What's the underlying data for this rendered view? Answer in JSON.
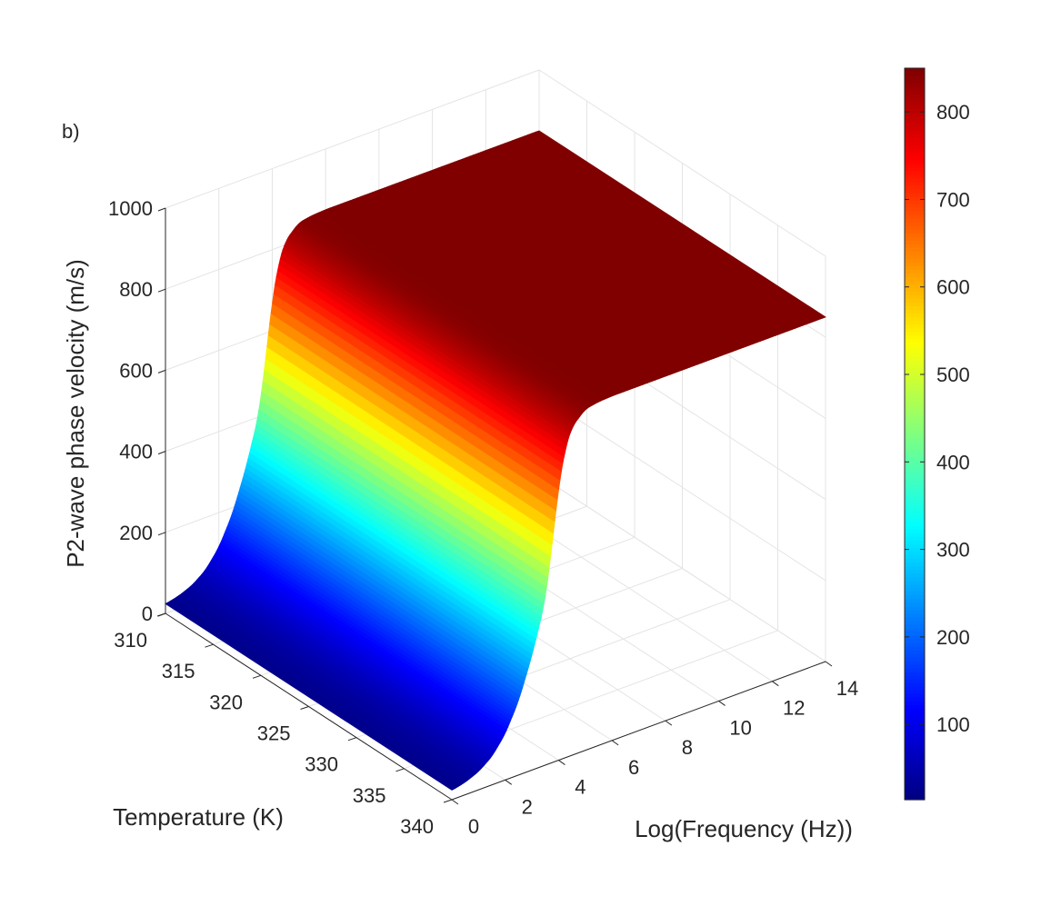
{
  "chart_data": {
    "type": "surface",
    "panel_label": "b)",
    "xlabel": "Temperature (K)",
    "ylabel": "Log(Frequency (Hz))",
    "zlabel": "P2-wave phase velocity (m/s)",
    "xlim": [
      310,
      340
    ],
    "ylim": [
      0,
      14
    ],
    "zlim": [
      0,
      1000
    ],
    "x_ticks": [
      310,
      315,
      320,
      325,
      330,
      335,
      340
    ],
    "y_ticks": [
      0,
      2,
      4,
      6,
      8,
      10,
      12,
      14
    ],
    "z_ticks": [
      0,
      200,
      400,
      600,
      800,
      1000
    ],
    "grid": true,
    "colormap": "jet",
    "colorbar": {
      "range": [
        14,
        850
      ],
      "ticks": [
        100,
        200,
        300,
        400,
        500,
        600,
        700,
        800
      ],
      "placement": "right"
    },
    "surface_profile": {
      "note_axis": "velocity vs Log(Frequency), constant along Temperature",
      "log_frequency": [
        0,
        0.5,
        1,
        1.5,
        2,
        2.5,
        3,
        3.5,
        3.75,
        4,
        4.25,
        4.5,
        5,
        5.5,
        6,
        14
      ],
      "velocity": [
        23,
        31,
        45,
        70,
        114,
        183,
        282,
        406,
        534,
        675,
        764,
        810,
        842,
        848,
        850,
        850
      ]
    }
  }
}
